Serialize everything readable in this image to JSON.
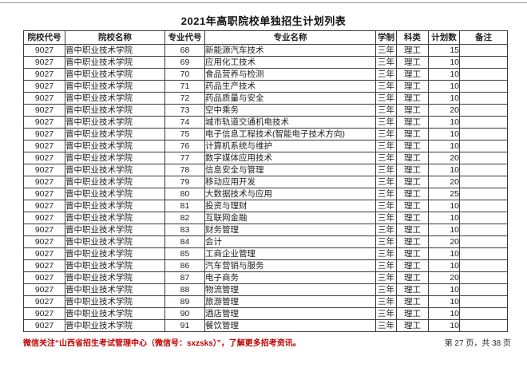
{
  "page": {
    "title": "2021年高职院校单独招生计划列表",
    "footer_notice": "微信关注“山西省招生考试管理中心（微信号：sxzsks）”，了解更多招考资讯。",
    "page_indicator": "第 27 页，共 38 页",
    "notice_color": "#c00000"
  },
  "table": {
    "headers": [
      "院校代号",
      "院校名称",
      "专业代号",
      "专业名称",
      "学制",
      "科类",
      "计划数",
      "备注"
    ],
    "rows": [
      [
        "9027",
        "晋中职业技术学院",
        "68",
        "新能源汽车技术",
        "三年",
        "理工",
        "15",
        ""
      ],
      [
        "9027",
        "晋中职业技术学院",
        "69",
        "应用化工技术",
        "三年",
        "理工",
        "10",
        ""
      ],
      [
        "9027",
        "晋中职业技术学院",
        "70",
        "食品营养与检测",
        "三年",
        "理工",
        "10",
        ""
      ],
      [
        "9027",
        "晋中职业技术学院",
        "71",
        "药品生产技术",
        "三年",
        "理工",
        "10",
        ""
      ],
      [
        "9027",
        "晋中职业技术学院",
        "72",
        "药品质量与安全",
        "三年",
        "理工",
        "10",
        ""
      ],
      [
        "9027",
        "晋中职业技术学院",
        "73",
        "空中乘务",
        "三年",
        "理工",
        "20",
        ""
      ],
      [
        "9027",
        "晋中职业技术学院",
        "74",
        "城市轨道交通机电技术",
        "三年",
        "理工",
        "10",
        ""
      ],
      [
        "9027",
        "晋中职业技术学院",
        "75",
        "电子信息工程技术(智能电子技术方向)",
        "三年",
        "理工",
        "10",
        ""
      ],
      [
        "9027",
        "晋中职业技术学院",
        "76",
        "计算机系统与维护",
        "三年",
        "理工",
        "10",
        ""
      ],
      [
        "9027",
        "晋中职业技术学院",
        "77",
        "数字媒体应用技术",
        "三年",
        "理工",
        "20",
        ""
      ],
      [
        "9027",
        "晋中职业技术学院",
        "78",
        "信息安全与管理",
        "三年",
        "理工",
        "10",
        ""
      ],
      [
        "9027",
        "晋中职业技术学院",
        "79",
        "移动应用开发",
        "三年",
        "理工",
        "20",
        ""
      ],
      [
        "9027",
        "晋中职业技术学院",
        "80",
        "大数据技术与应用",
        "三年",
        "理工",
        "25",
        ""
      ],
      [
        "9027",
        "晋中职业技术学院",
        "81",
        "投资与理财",
        "三年",
        "理工",
        "10",
        ""
      ],
      [
        "9027",
        "晋中职业技术学院",
        "82",
        "互联网金融",
        "三年",
        "理工",
        "10",
        ""
      ],
      [
        "9027",
        "晋中职业技术学院",
        "83",
        "财务管理",
        "三年",
        "理工",
        "10",
        ""
      ],
      [
        "9027",
        "晋中职业技术学院",
        "84",
        "会计",
        "三年",
        "理工",
        "20",
        ""
      ],
      [
        "9027",
        "晋中职业技术学院",
        "85",
        "工商企业管理",
        "三年",
        "理工",
        "10",
        ""
      ],
      [
        "9027",
        "晋中职业技术学院",
        "86",
        "汽车营销与服务",
        "三年",
        "理工",
        "10",
        ""
      ],
      [
        "9027",
        "晋中职业技术学院",
        "87",
        "电子商务",
        "三年",
        "理工",
        "20",
        ""
      ],
      [
        "9027",
        "晋中职业技术学院",
        "88",
        "物流管理",
        "三年",
        "理工",
        "10",
        ""
      ],
      [
        "9027",
        "晋中职业技术学院",
        "89",
        "旅游管理",
        "三年",
        "理工",
        "10",
        ""
      ],
      [
        "9027",
        "晋中职业技术学院",
        "90",
        "酒店管理",
        "三年",
        "理工",
        "10",
        ""
      ],
      [
        "9027",
        "晋中职业技术学院",
        "91",
        "餐饮管理",
        "三年",
        "理工",
        "10",
        ""
      ]
    ]
  }
}
